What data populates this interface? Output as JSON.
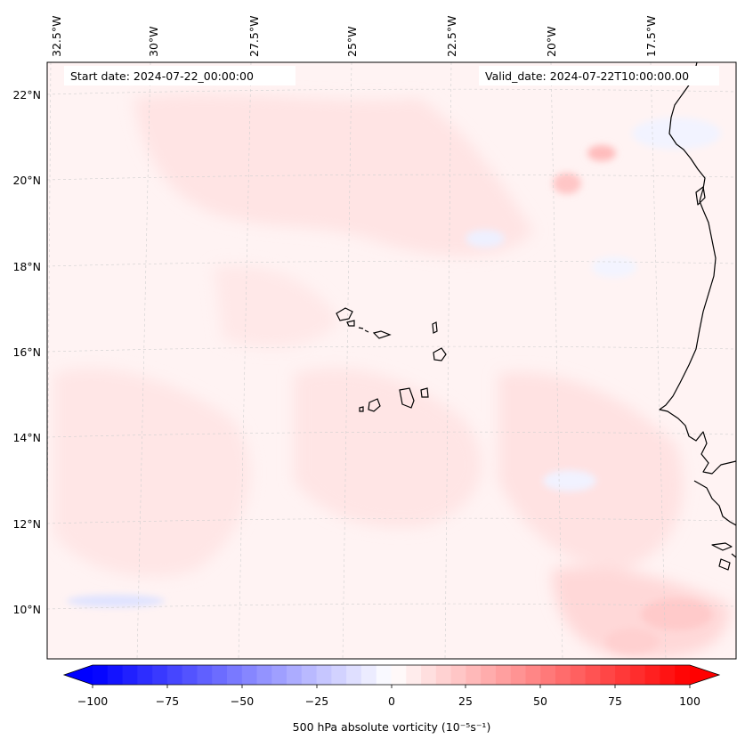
{
  "map": {
    "start_label": "Start date: 2024-07-22_00:00:00",
    "valid_label": "Valid_date: 2024-07-22T10:00:00.00",
    "lon_labels": [
      "32.5°W",
      "30°W",
      "27.5°W",
      "25°W",
      "22.5°W",
      "20°W",
      "17.5°W"
    ],
    "lat_labels": [
      "22°N",
      "20°N",
      "18°N",
      "16°N",
      "14°N",
      "12°N",
      "10°N"
    ],
    "colors": {
      "positive": "#ff0000",
      "negative": "#0000ff",
      "neutral": "#ffffff",
      "coast": "#000000",
      "grid": "#c8c8c8"
    }
  },
  "colorbar": {
    "label": "500 hPa absolute vorticity (10⁻⁵s⁻¹)",
    "min": -100,
    "max": 100,
    "levels": 40,
    "ticks": [
      "−100",
      "−75",
      "−50",
      "−25",
      "0",
      "25",
      "50",
      "75",
      "100"
    ]
  }
}
